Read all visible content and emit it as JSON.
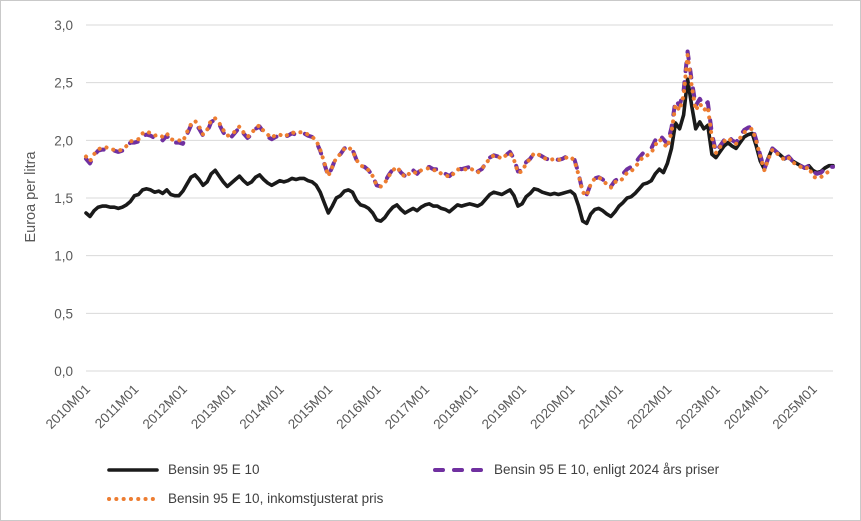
{
  "chart_data": {
    "type": "line",
    "x_unit": "month",
    "x_start": "2010M01",
    "x_end": "2025M06",
    "x_tick_labels": [
      "2010M01",
      "2011M01",
      "2012M01",
      "2013M01",
      "2014M01",
      "2015M01",
      "2016M01",
      "2017M01",
      "2018M01",
      "2019M01",
      "2020M01",
      "2021M01",
      "2022M01",
      "2023M01",
      "2024M01",
      "2025M01"
    ],
    "y_tick_labels": [
      "0,0",
      "0,5",
      "1,0",
      "1,5",
      "2,0",
      "2,5",
      "3,0"
    ],
    "ylabel": "Euroa per litra",
    "xlabel": "",
    "title": "",
    "ylim": [
      0,
      3.0
    ],
    "ytick_step": 0.5,
    "grid": "horizontal",
    "grid_color": "#d9d9d9",
    "legend_position": "bottom",
    "series": [
      {
        "name": "Bensin 95 E 10",
        "color": "#1a1a1a",
        "style": "solid",
        "values": [
          1.37,
          1.34,
          1.39,
          1.42,
          1.43,
          1.43,
          1.42,
          1.42,
          1.41,
          1.42,
          1.44,
          1.47,
          1.52,
          1.53,
          1.57,
          1.58,
          1.57,
          1.55,
          1.56,
          1.54,
          1.57,
          1.53,
          1.52,
          1.52,
          1.56,
          1.62,
          1.68,
          1.7,
          1.66,
          1.61,
          1.64,
          1.71,
          1.74,
          1.69,
          1.64,
          1.6,
          1.63,
          1.66,
          1.69,
          1.65,
          1.62,
          1.64,
          1.68,
          1.7,
          1.66,
          1.63,
          1.61,
          1.63,
          1.65,
          1.64,
          1.65,
          1.67,
          1.66,
          1.67,
          1.67,
          1.65,
          1.64,
          1.61,
          1.55,
          1.46,
          1.37,
          1.43,
          1.5,
          1.52,
          1.56,
          1.57,
          1.55,
          1.48,
          1.44,
          1.43,
          1.41,
          1.37,
          1.31,
          1.3,
          1.33,
          1.38,
          1.42,
          1.44,
          1.4,
          1.37,
          1.39,
          1.41,
          1.39,
          1.42,
          1.44,
          1.45,
          1.43,
          1.43,
          1.41,
          1.4,
          1.38,
          1.41,
          1.44,
          1.43,
          1.44,
          1.45,
          1.44,
          1.43,
          1.45,
          1.49,
          1.53,
          1.55,
          1.54,
          1.53,
          1.55,
          1.57,
          1.52,
          1.43,
          1.45,
          1.51,
          1.54,
          1.58,
          1.57,
          1.55,
          1.54,
          1.53,
          1.54,
          1.53,
          1.54,
          1.55,
          1.56,
          1.53,
          1.43,
          1.3,
          1.28,
          1.36,
          1.4,
          1.41,
          1.39,
          1.36,
          1.34,
          1.38,
          1.43,
          1.46,
          1.5,
          1.51,
          1.54,
          1.58,
          1.62,
          1.63,
          1.65,
          1.71,
          1.75,
          1.72,
          1.8,
          1.93,
          2.15,
          2.1,
          2.22,
          2.53,
          2.3,
          2.1,
          2.16,
          2.1,
          2.13,
          1.88,
          1.85,
          1.9,
          1.95,
          1.98,
          1.95,
          1.93,
          1.98,
          2.03,
          2.05,
          2.06,
          1.95,
          1.82,
          1.75,
          1.85,
          1.93,
          1.9,
          1.87,
          1.84,
          1.86,
          1.82,
          1.8,
          1.78,
          1.76,
          1.78,
          1.74,
          1.72,
          1.73,
          1.76,
          1.78,
          1.78
        ]
      },
      {
        "name": "Bensin 95 E 10, enligt 2024 års priser",
        "color": "#7030a0",
        "style": "dashed",
        "values": [
          1.84,
          1.8,
          1.87,
          1.91,
          1.92,
          1.92,
          1.91,
          1.91,
          1.9,
          1.91,
          1.94,
          1.98,
          1.98,
          1.99,
          2.04,
          2.05,
          2.04,
          2.02,
          2.03,
          2.0,
          2.04,
          1.99,
          1.98,
          1.98,
          1.97,
          2.05,
          2.13,
          2.15,
          2.1,
          2.04,
          2.07,
          2.16,
          2.18,
          2.14,
          2.07,
          2.02,
          2.03,
          2.07,
          2.11,
          2.06,
          2.02,
          2.05,
          2.1,
          2.12,
          2.07,
          2.03,
          2.01,
          2.03,
          2.04,
          2.03,
          2.04,
          2.06,
          2.05,
          2.06,
          2.06,
          2.04,
          2.03,
          1.99,
          1.91,
          1.8,
          1.69,
          1.77,
          1.86,
          1.88,
          1.93,
          1.94,
          1.92,
          1.83,
          1.78,
          1.77,
          1.74,
          1.69,
          1.61,
          1.6,
          1.64,
          1.7,
          1.75,
          1.77,
          1.72,
          1.69,
          1.71,
          1.74,
          1.71,
          1.75,
          1.76,
          1.77,
          1.75,
          1.75,
          1.72,
          1.71,
          1.69,
          1.72,
          1.76,
          1.75,
          1.76,
          1.77,
          1.74,
          1.73,
          1.75,
          1.8,
          1.85,
          1.87,
          1.86,
          1.85,
          1.87,
          1.9,
          1.84,
          1.73,
          1.74,
          1.81,
          1.84,
          1.89,
          1.88,
          1.86,
          1.84,
          1.83,
          1.84,
          1.83,
          1.84,
          1.86,
          1.86,
          1.83,
          1.71,
          1.55,
          1.53,
          1.62,
          1.67,
          1.68,
          1.66,
          1.62,
          1.6,
          1.65,
          1.67,
          1.71,
          1.75,
          1.77,
          1.8,
          1.85,
          1.89,
          1.91,
          1.93,
          2.0,
          2.05,
          2.01,
          1.97,
          2.11,
          2.35,
          2.3,
          2.43,
          2.77,
          2.52,
          2.3,
          2.36,
          2.3,
          2.33,
          2.06,
          1.9,
          1.95,
          2.0,
          2.04,
          2.0,
          1.98,
          2.04,
          2.09,
          2.11,
          2.12,
          2.0,
          1.87,
          1.75,
          1.85,
          1.93,
          1.9,
          1.87,
          1.84,
          1.86,
          1.82,
          1.8,
          1.78,
          1.76,
          1.78,
          1.73,
          1.71,
          1.72,
          1.75,
          1.77,
          1.77
        ]
      },
      {
        "name": "Bensin 95 E 10, inkomstjusterat pris",
        "color": "#ed7d31",
        "style": "dotted",
        "values": [
          1.86,
          1.82,
          1.88,
          1.92,
          1.94,
          1.94,
          1.92,
          1.92,
          1.91,
          1.92,
          1.95,
          1.99,
          2.0,
          2.01,
          2.06,
          2.08,
          2.06,
          2.04,
          2.05,
          2.03,
          2.06,
          2.01,
          2.0,
          2.0,
          1.99,
          2.07,
          2.14,
          2.17,
          2.12,
          2.05,
          2.09,
          2.18,
          2.19,
          2.15,
          2.09,
          2.04,
          2.05,
          2.08,
          2.12,
          2.07,
          2.03,
          2.06,
          2.11,
          2.13,
          2.08,
          2.05,
          2.02,
          2.05,
          2.05,
          2.03,
          2.05,
          2.07,
          2.06,
          2.07,
          2.07,
          2.05,
          2.03,
          2.0,
          1.92,
          1.81,
          1.69,
          1.77,
          1.85,
          1.88,
          1.93,
          1.94,
          1.91,
          1.83,
          1.78,
          1.77,
          1.74,
          1.69,
          1.61,
          1.6,
          1.63,
          1.69,
          1.74,
          1.77,
          1.72,
          1.68,
          1.71,
          1.73,
          1.71,
          1.74,
          1.75,
          1.76,
          1.74,
          1.74,
          1.71,
          1.7,
          1.68,
          1.71,
          1.75,
          1.74,
          1.75,
          1.76,
          1.74,
          1.72,
          1.75,
          1.8,
          1.84,
          1.87,
          1.86,
          1.84,
          1.87,
          1.89,
          1.83,
          1.72,
          1.73,
          1.8,
          1.84,
          1.89,
          1.88,
          1.85,
          1.84,
          1.83,
          1.84,
          1.83,
          1.84,
          1.85,
          1.86,
          1.82,
          1.7,
          1.55,
          1.52,
          1.62,
          1.67,
          1.68,
          1.65,
          1.62,
          1.59,
          1.64,
          1.64,
          1.67,
          1.72,
          1.73,
          1.77,
          1.81,
          1.86,
          1.87,
          1.89,
          1.96,
          2.01,
          1.97,
          1.94,
          2.07,
          2.31,
          2.26,
          2.39,
          2.74,
          2.47,
          2.26,
          2.32,
          2.26,
          2.29,
          2.02,
          1.89,
          1.94,
          1.99,
          2.02,
          1.99,
          1.97,
          2.02,
          2.07,
          2.09,
          2.1,
          1.99,
          1.86,
          1.74,
          1.84,
          1.92,
          1.89,
          1.86,
          1.83,
          1.85,
          1.81,
          1.79,
          1.77,
          1.75,
          1.77,
          1.69,
          1.67,
          1.68,
          1.71,
          1.73,
          1.73
        ]
      }
    ]
  }
}
